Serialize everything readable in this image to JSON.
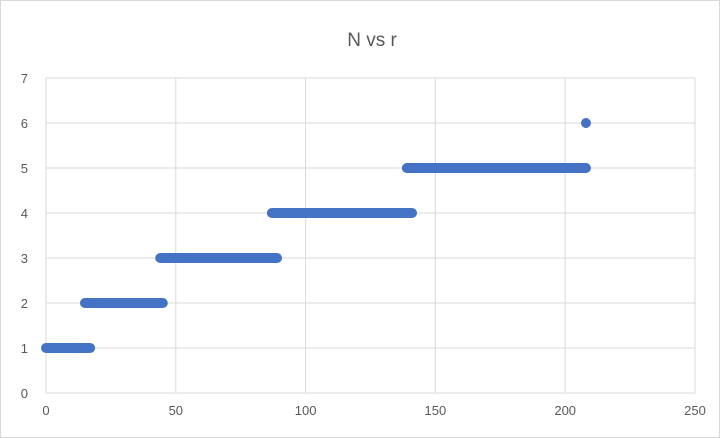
{
  "chart_data": {
    "type": "scatter",
    "title": "N vs r",
    "xlabel": "",
    "ylabel": "",
    "xlim": [
      0,
      250
    ],
    "ylim": [
      0,
      7
    ],
    "x_ticks": [
      "0",
      "50",
      "100",
      "150",
      "200",
      "250"
    ],
    "y_ticks": [
      "0",
      "1",
      "2",
      "3",
      "4",
      "5",
      "6",
      "7"
    ],
    "grid": true,
    "legend": "none",
    "marker_color": "#4472C4",
    "series": [
      {
        "points": [
          {
            "x_from": 0,
            "x_to": 17,
            "y": 1
          },
          {
            "x_from": 15,
            "x_to": 45,
            "y": 2
          },
          {
            "x_from": 44,
            "x_to": 89,
            "y": 3
          },
          {
            "x_from": 87,
            "x_to": 141,
            "y": 4
          },
          {
            "x_from": 139,
            "x_to": 208,
            "y": 5
          },
          {
            "x_from": 208,
            "x_to": 208,
            "y": 6
          }
        ]
      }
    ]
  }
}
